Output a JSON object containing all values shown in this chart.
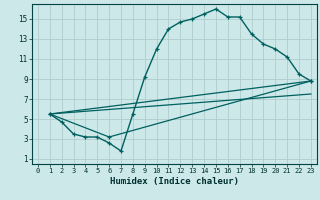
{
  "xlabel": "Humidex (Indice chaleur)",
  "bg_color": "#cce8e8",
  "grid_color": "#b0cccc",
  "line_color": "#006060",
  "xlim": [
    -0.5,
    23.5
  ],
  "ylim": [
    0.5,
    16.5
  ],
  "xticks": [
    0,
    1,
    2,
    3,
    4,
    5,
    6,
    7,
    8,
    9,
    10,
    11,
    12,
    13,
    14,
    15,
    16,
    17,
    18,
    19,
    20,
    21,
    22,
    23
  ],
  "yticks": [
    1,
    3,
    5,
    7,
    9,
    11,
    13,
    15
  ],
  "line1_x": [
    1,
    2,
    3,
    4,
    5,
    6,
    7,
    8,
    9,
    10,
    11,
    12,
    13,
    14,
    15,
    16,
    17,
    18,
    19,
    20,
    21,
    22,
    23
  ],
  "line1_y": [
    5.5,
    4.7,
    3.5,
    3.2,
    3.2,
    2.6,
    1.8,
    5.5,
    9.2,
    12.0,
    14.0,
    14.7,
    15.0,
    15.5,
    16.0,
    15.2,
    15.2,
    13.5,
    12.5,
    12.0,
    11.2,
    9.5,
    8.8
  ],
  "line2_x": [
    1,
    6,
    23
  ],
  "line2_y": [
    5.5,
    3.2,
    8.8
  ],
  "line3_x": [
    1,
    23
  ],
  "line3_y": [
    5.5,
    8.8
  ],
  "line4_x": [
    1,
    23
  ],
  "line4_y": [
    5.5,
    7.5
  ]
}
